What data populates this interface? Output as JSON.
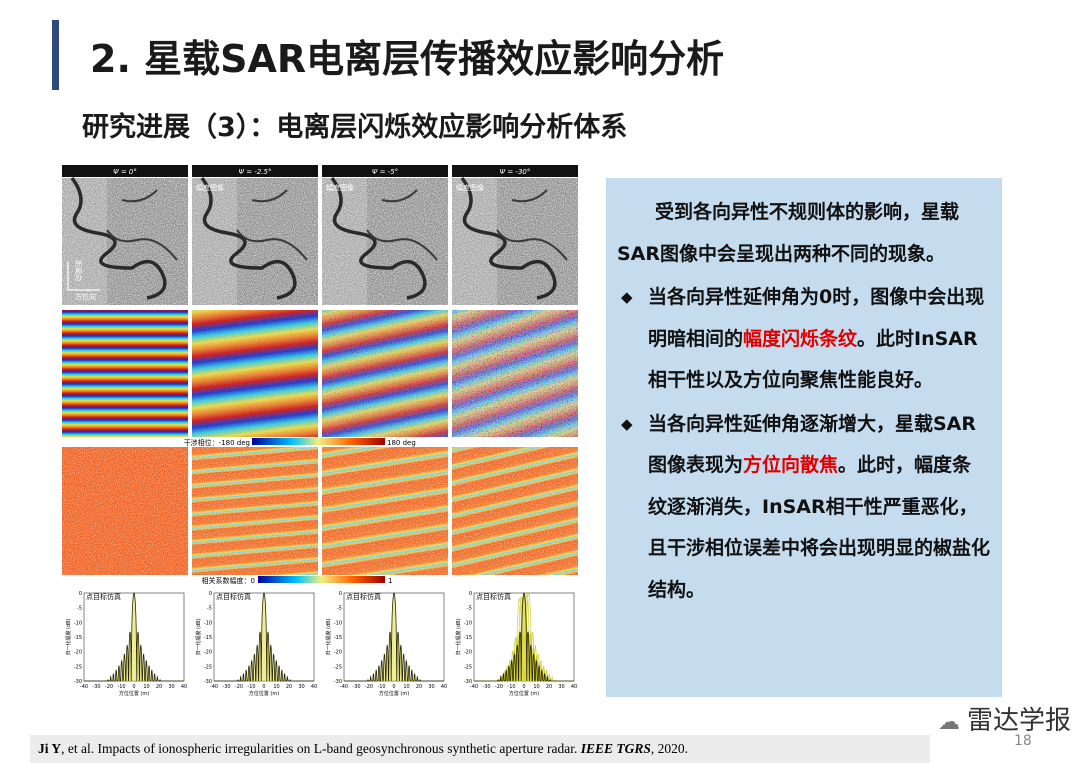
{
  "header": {
    "title": "2. 星载SAR电离层传播效应影响分析",
    "subtitle": "研究进展（3）：电离层闪烁效应影响分析体系"
  },
  "figure": {
    "columns": [
      "Ψ = 0°",
      "Ψ = -2.5°",
      "Ψ = -5°",
      "Ψ = -30°"
    ],
    "amplitude_label": "幅度图像",
    "range_axis": "距离向",
    "azimuth_axis": "方位向",
    "phase_colorbar": {
      "label": "干涉相位：-180 deg",
      "max": "180 deg"
    },
    "coherence_colorbar": {
      "label": "相关系数幅度：0",
      "max": "1"
    },
    "psf": {
      "title": "点目标仿真",
      "y_label": "归一化幅度 (dB)",
      "x_label": "方位位置 (m)",
      "y_ticks": [
        0,
        -5,
        -10,
        -15,
        -20,
        -25,
        -30
      ],
      "x_ticks": [
        -40,
        -30,
        -20,
        -10,
        0,
        10,
        20,
        30,
        40
      ]
    }
  },
  "textbox": {
    "intro": "受到各向异性不规则体的影响，星载SAR图像中会呈现出两种不同的现象。",
    "bullets": [
      {
        "parts": [
          {
            "text": "当各向异性延伸角为0时，图像中会出现明暗相间的"
          },
          {
            "text": "幅度闪烁条纹",
            "highlight": true
          },
          {
            "text": "。此时InSAR相干性以及方位向聚焦性能良好。"
          }
        ]
      },
      {
        "parts": [
          {
            "text": "当各向异性延伸角逐渐增大，星载SAR图像表现为"
          },
          {
            "text": "方位向散焦",
            "highlight": true
          },
          {
            "text": "。此时，幅度条纹逐渐消失，InSAR相干性严重恶化，且干涉相位误差中将会出现明显的椒盐化结构。"
          }
        ]
      }
    ]
  },
  "reference": {
    "parts": [
      {
        "text": "Ji Y",
        "bold": true
      },
      {
        "text": ", et al. Impacts of ionospheric irregularities on L-band geosynchronous synthetic aperture radar. "
      },
      {
        "text": "IEEE TGRS",
        "bold": true,
        "italic": true
      },
      {
        "text": ", 2020."
      }
    ]
  },
  "watermark": "雷达学报",
  "page_number": "18"
}
